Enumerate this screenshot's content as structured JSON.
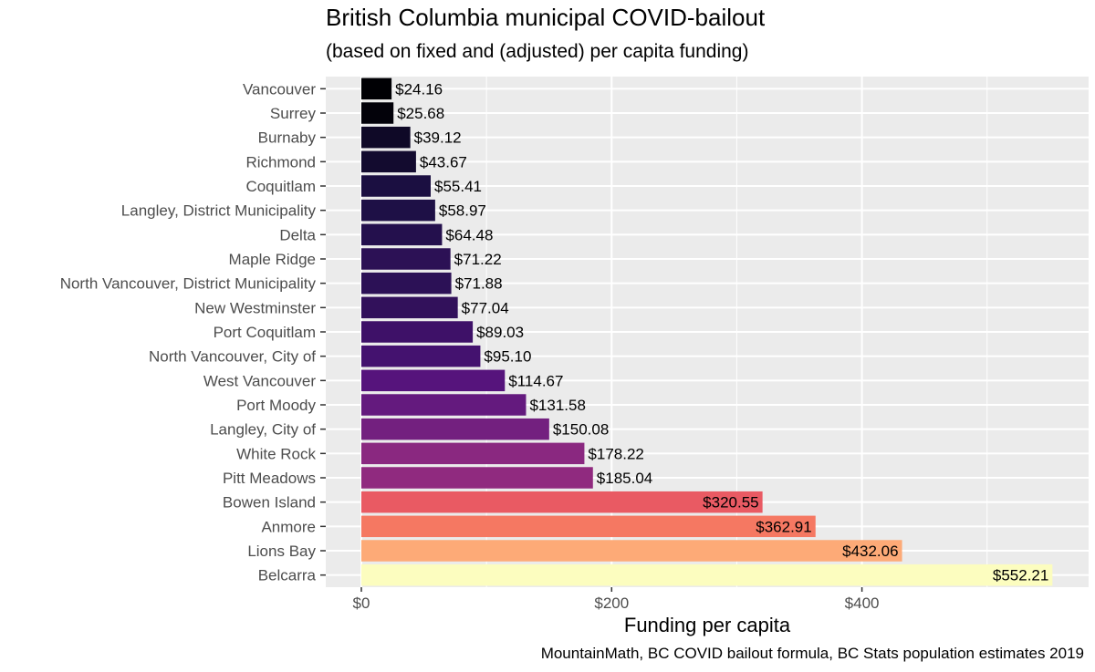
{
  "chart_data": {
    "type": "bar",
    "orientation": "horizontal",
    "title": "British Columbia municipal COVID-bailout",
    "subtitle": "(based on fixed and (adjusted) per capita funding)",
    "xlabel": "Funding per capita",
    "ylabel": "",
    "caption": "MountainMath, BC COVID bailout formula, BC Stats population estimates 2019",
    "xlim": [
      0,
      560
    ],
    "x_ticks": [
      0,
      200,
      400
    ],
    "x_tick_labels": [
      "$0",
      "$200",
      "$400"
    ],
    "grid": true,
    "legend": "none",
    "categories": [
      "Vancouver",
      "Surrey",
      "Burnaby",
      "Richmond",
      "Coquitlam",
      "Langley, District Municipality",
      "Delta",
      "Maple Ridge",
      "North Vancouver, District Municipality",
      "New Westminster",
      "Port Coquitlam",
      "North Vancouver, City of",
      "West Vancouver",
      "Port Moody",
      "Langley, City of",
      "White Rock",
      "Pitt Meadows",
      "Bowen Island",
      "Anmore",
      "Lions Bay",
      "Belcarra"
    ],
    "values": [
      24.16,
      25.68,
      39.12,
      43.67,
      55.41,
      58.97,
      64.48,
      71.22,
      71.88,
      77.04,
      89.03,
      95.1,
      114.67,
      131.58,
      150.08,
      178.22,
      185.04,
      320.55,
      362.91,
      432.06,
      552.21
    ],
    "value_labels": [
      "$24.16",
      "$25.68",
      "$39.12",
      "$43.67",
      "$55.41",
      "$58.97",
      "$64.48",
      "$71.22",
      "$71.88",
      "$77.04",
      "$89.03",
      "$95.10",
      "$114.67",
      "$131.58",
      "$150.08",
      "$178.22",
      "$185.04",
      "$320.55",
      "$362.91",
      "$432.06",
      "$552.21"
    ],
    "colors": {
      "panel_background": "#ebebeb",
      "grid": "#ffffff",
      "colormap": "magma"
    }
  }
}
